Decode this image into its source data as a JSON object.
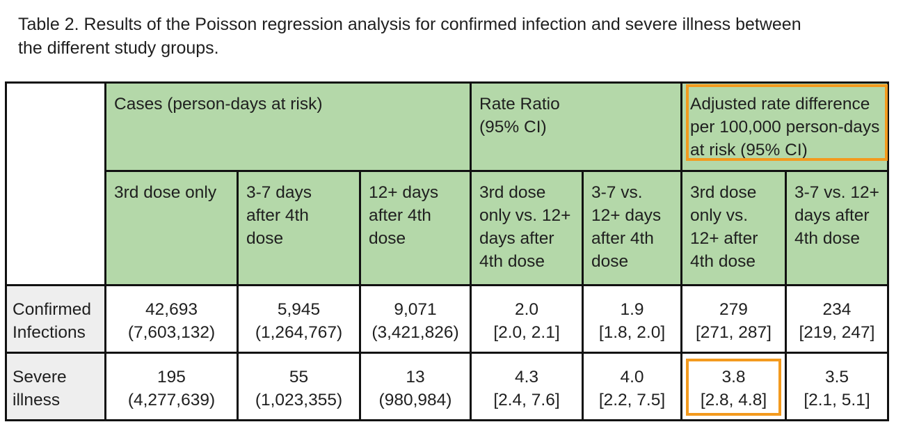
{
  "caption": {
    "line1": "Table 2. Results of the Poisson regression analysis for confirmed infection and severe illness between",
    "line2": "the different study groups."
  },
  "header": {
    "cases": "Cases (person-days at risk)",
    "rate_ratio": [
      "Rate Ratio",
      "(95% CI)"
    ],
    "adjusted_rate_difference": [
      "Adjusted rate difference",
      "per 100,000 person-days",
      "at risk (95% CI)"
    ]
  },
  "subheader": [
    [
      "3rd dose only"
    ],
    [
      "3-7 days",
      "after 4th",
      "dose"
    ],
    [
      "12+ days",
      "after 4th",
      "dose"
    ],
    [
      "3rd dose",
      "only vs. 12+",
      "days after",
      "4th dose"
    ],
    [
      "3-7 vs.",
      "12+ days",
      "after 4th",
      "dose"
    ],
    [
      "3rd dose",
      "only vs.",
      "12+ after",
      "4th dose"
    ],
    [
      "3-7 vs. 12+",
      "days after",
      "4th dose"
    ]
  ],
  "rows": [
    {
      "label": [
        "Confirmed",
        "Infections"
      ],
      "cells": [
        [
          "42,693",
          "(7,603,132)"
        ],
        [
          "5,945",
          "(1,264,767)"
        ],
        [
          "9,071",
          "(3,421,826)"
        ],
        [
          "2.0",
          "[2.0, 2.1]"
        ],
        [
          "1.9",
          "[1.8, 2.0]"
        ],
        [
          "279",
          "[271, 287]"
        ],
        [
          "234",
          "[219, 247]"
        ]
      ]
    },
    {
      "label": [
        "Severe",
        "illness"
      ],
      "cells": [
        [
          "195",
          "(4,277,639)"
        ],
        [
          "55",
          "(1,023,355)"
        ],
        [
          "13",
          "(980,984)"
        ],
        [
          "4.3",
          "[2.4, 7.6]"
        ],
        [
          "4.0",
          "[2.2, 7.5]"
        ],
        [
          "3.8",
          "[2.8, 4.8]"
        ],
        [
          "3.5",
          "[2.1, 5.1]"
        ]
      ]
    }
  ],
  "colors": {
    "header_green": "#b4d8a9",
    "row_label_grey": "#eeeeee",
    "highlight_orange": "#f39a1e"
  }
}
